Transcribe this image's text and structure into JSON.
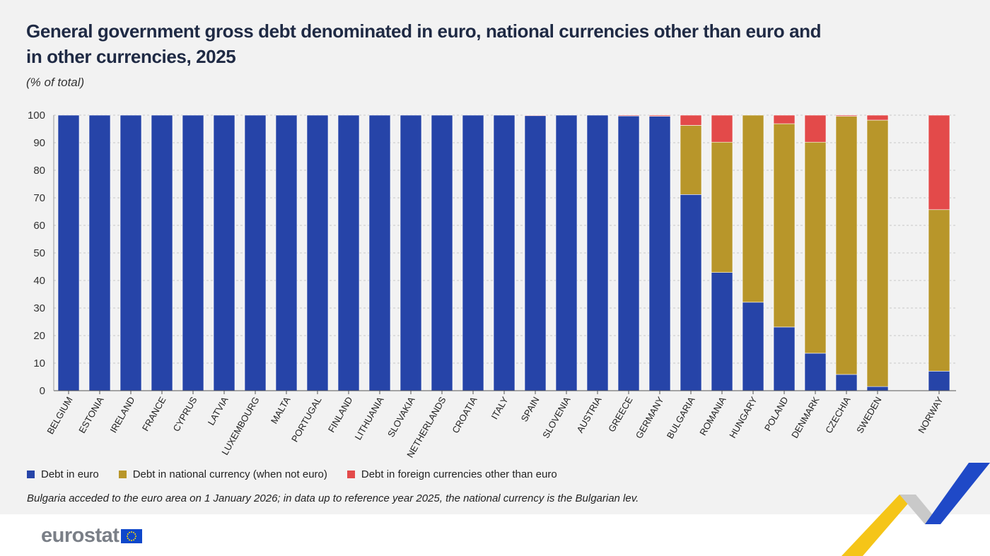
{
  "title": "General government gross debt denominated in euro, national currencies other than euro and in other currencies, 2025",
  "subtitle": "(% of total)",
  "legend": [
    {
      "label": "Debt in euro",
      "color": "#2644a8"
    },
    {
      "label": "Debt in national currency (when not euro)",
      "color": "#b8962a"
    },
    {
      "label": "Debt in foreign currencies other than euro",
      "color": "#e34a4a"
    }
  ],
  "footnote": "Bulgaria acceded to the euro area on 1 January 2026; in data up to reference year 2025, the national currency is the Bulgarian lev.",
  "logo": {
    "text": "eurostat",
    "flag_icon": "eu-flag-icon"
  },
  "chart_data": {
    "type": "bar",
    "stacked": true,
    "title": "General government gross debt denominated in euro, national currencies other than euro and in other currencies, 2025",
    "ylabel": "(% of total)",
    "ylim": [
      0,
      100
    ],
    "yticks": [
      0,
      10,
      20,
      30,
      40,
      50,
      60,
      70,
      80,
      90,
      100
    ],
    "grid": true,
    "categories": [
      "BELGIUM",
      "ESTONIA",
      "IRELAND",
      "FRANCE",
      "CYPRUS",
      "LATVIA",
      "LUXEMBOURG",
      "MALTA",
      "PORTUGAL",
      "FINLAND",
      "LITHUANIA",
      "SLOVAKIA",
      "NETHERLANDS",
      "CROATIA",
      "ITALY",
      "SPAIN",
      "SLOVENIA",
      "AUSTRIA",
      "GREECE",
      "GERMANY",
      "BULGARIA",
      "ROMANIA",
      "HUNGARY",
      "POLAND",
      "DENMARK",
      "CZECHIA",
      "SWEDEN",
      "NORWAY"
    ],
    "series": [
      {
        "name": "Debt in euro",
        "color": "#2644a8",
        "values": [
          100,
          100,
          100,
          100,
          100,
          100,
          100,
          100,
          100,
          100,
          100,
          100,
          100,
          100,
          100,
          99.9,
          100,
          100,
          99.7,
          99.6,
          71.2,
          42.9,
          32.1,
          23.1,
          13.6,
          5.9,
          1.5,
          7.1
        ]
      },
      {
        "name": "Debt in national currency (when not euro)",
        "color": "#b8962a",
        "values": [
          0,
          0,
          0,
          0,
          0,
          0,
          0,
          0,
          0,
          0,
          0,
          0,
          0,
          0,
          0,
          0,
          0,
          0,
          0,
          0,
          25.1,
          47.3,
          67.9,
          73.8,
          76.6,
          93.7,
          96.7,
          58.6
        ]
      },
      {
        "name": "Debt in foreign currencies other than euro",
        "color": "#e34a4a",
        "values": [
          0,
          0,
          0,
          0,
          0,
          0,
          0,
          0,
          0,
          0,
          0,
          0,
          0,
          0,
          0,
          0.1,
          0,
          0,
          0.3,
          0.4,
          3.7,
          9.8,
          0,
          3.1,
          9.8,
          0.4,
          1.8,
          34.3
        ]
      }
    ]
  }
}
